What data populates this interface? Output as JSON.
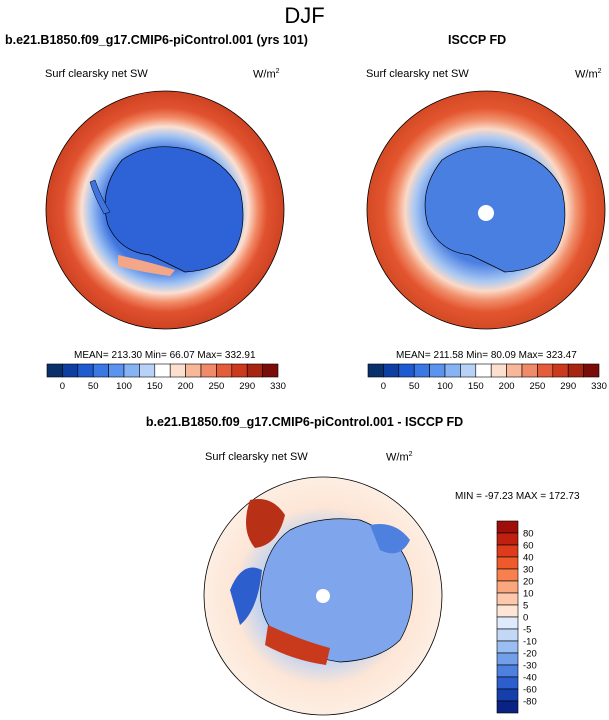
{
  "figure": {
    "title": "DJF"
  },
  "chart_data": [
    {
      "type": "heatmap",
      "projection": "south-polar stereographic",
      "title": "b.e21.B1850.f09_g17.CMIP6-piControl.001 (yrs 101)",
      "left_label": "Surf clearsky net SW",
      "units_base": "W/m",
      "units_exp": "2",
      "stats": {
        "mean": "213.30",
        "min": "66.07",
        "max": "332.91"
      },
      "stats_text": "MEAN= 213.30  Min=  66.07  Max= 332.91",
      "colorbar": {
        "orientation": "horizontal",
        "levels": [
          "0",
          "50",
          "100",
          "150",
          "200",
          "250",
          "290",
          "330"
        ],
        "colors": [
          "#08306b",
          "#0d3fa3",
          "#1e5ad0",
          "#3a78e4",
          "#5a94ee",
          "#86b3f4",
          "#b8d2f7",
          "#ffffff",
          "#fddfcf",
          "#f9b79a",
          "#f08a68",
          "#e45c3a",
          "#cc3a1e",
          "#a82512",
          "#7a0d0a"
        ]
      }
    },
    {
      "type": "heatmap",
      "projection": "south-polar stereographic",
      "title": "ISCCP FD",
      "left_label": "Surf clearsky net SW",
      "units_base": "W/m",
      "units_exp": "2",
      "stats": {
        "mean": "211.58",
        "min": "80.09",
        "max": "323.47"
      },
      "stats_text": "MEAN= 211.58  Min=  80.09  Max= 323.47",
      "colorbar": {
        "orientation": "horizontal",
        "levels": [
          "0",
          "50",
          "100",
          "150",
          "200",
          "250",
          "290",
          "330"
        ],
        "colors": [
          "#08306b",
          "#0d3fa3",
          "#1e5ad0",
          "#3a78e4",
          "#5a94ee",
          "#86b3f4",
          "#b8d2f7",
          "#ffffff",
          "#fddfcf",
          "#f9b79a",
          "#f08a68",
          "#e45c3a",
          "#cc3a1e",
          "#a82512",
          "#7a0d0a"
        ]
      }
    },
    {
      "type": "heatmap",
      "projection": "south-polar stereographic",
      "title": "b.e21.B1850.f09_g17.CMIP6-piControl.001 - ISCCP FD",
      "left_label": "Surf clearsky net SW",
      "units_base": "W/m",
      "units_exp": "2",
      "stats": {
        "min": "-97.23",
        "max": "172.73"
      },
      "stats_text": "MIN = -97.23 MAX = 172.73",
      "colorbar": {
        "orientation": "vertical",
        "levels": [
          "80",
          "60",
          "40",
          "30",
          "20",
          "10",
          "5",
          "0",
          "-5",
          "-10",
          "-20",
          "-30",
          "-40",
          "-60",
          "-80"
        ],
        "colors": [
          "#9e0e0a",
          "#c0200f",
          "#dd3b1c",
          "#ee5a2c",
          "#f7804e",
          "#fba77e",
          "#fdc8ab",
          "#fde6d6",
          "#dfeafc",
          "#c3d7f7",
          "#9bbef2",
          "#729fea",
          "#4d80df",
          "#2c5fcd",
          "#163fae",
          "#0a2283"
        ]
      }
    }
  ]
}
